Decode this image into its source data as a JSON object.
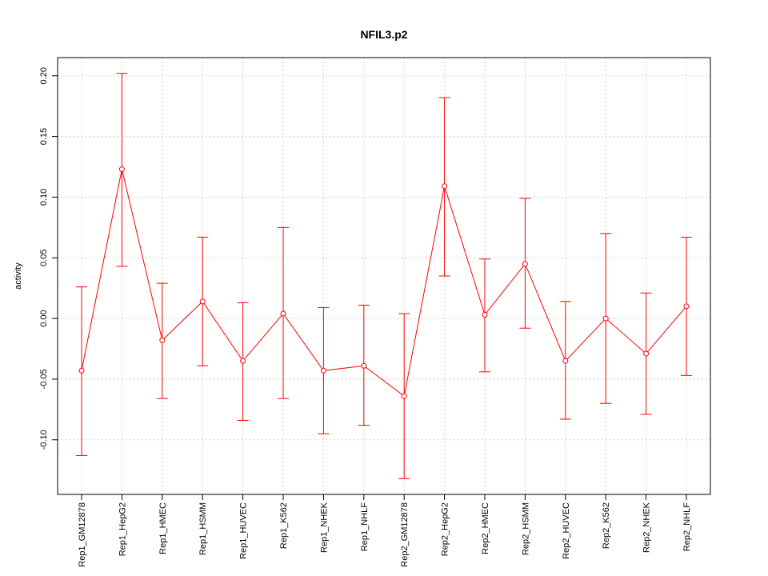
{
  "chart_data": {
    "type": "line",
    "title": "NFIL3.p2",
    "xlabel": "",
    "ylabel": "activity",
    "ylim": [
      -0.145,
      0.215
    ],
    "yticks": [
      -0.1,
      -0.05,
      0.0,
      0.05,
      0.1,
      0.15,
      0.2
    ],
    "ytick_labels": [
      "-0.10",
      "-0.05",
      "0.00",
      "0.05",
      "0.10",
      "0.15",
      "0.20"
    ],
    "grid": true,
    "categories": [
      "Rep1_GM12878",
      "Rep1_HepG2",
      "Rep1_HMEC",
      "Rep1_HSMM",
      "Rep1_HUVEC",
      "Rep1_K562",
      "Rep1_NHEK",
      "Rep1_NHLF",
      "Rep2_GM12878",
      "Rep2_HepG2",
      "Rep2_HMEC",
      "Rep2_HSMM",
      "Rep2_HUVEC",
      "Rep2_K562",
      "Rep2_NHEK",
      "Rep2_NHLF"
    ],
    "series": [
      {
        "name": "activity",
        "color": "#ff0000",
        "values": [
          -0.043,
          0.123,
          -0.018,
          0.014,
          -0.035,
          0.004,
          -0.043,
          -0.039,
          -0.064,
          0.109,
          0.003,
          0.045,
          -0.035,
          0.0,
          -0.029,
          0.01
        ],
        "upper": [
          0.026,
          0.202,
          0.029,
          0.067,
          0.013,
          0.075,
          0.009,
          0.011,
          0.004,
          0.182,
          0.049,
          0.099,
          0.014,
          0.07,
          0.021,
          0.067
        ],
        "lower": [
          -0.113,
          0.043,
          -0.066,
          -0.039,
          -0.084,
          -0.066,
          -0.095,
          -0.088,
          -0.132,
          0.035,
          -0.044,
          -0.008,
          -0.083,
          -0.07,
          -0.079,
          -0.047
        ]
      }
    ]
  }
}
